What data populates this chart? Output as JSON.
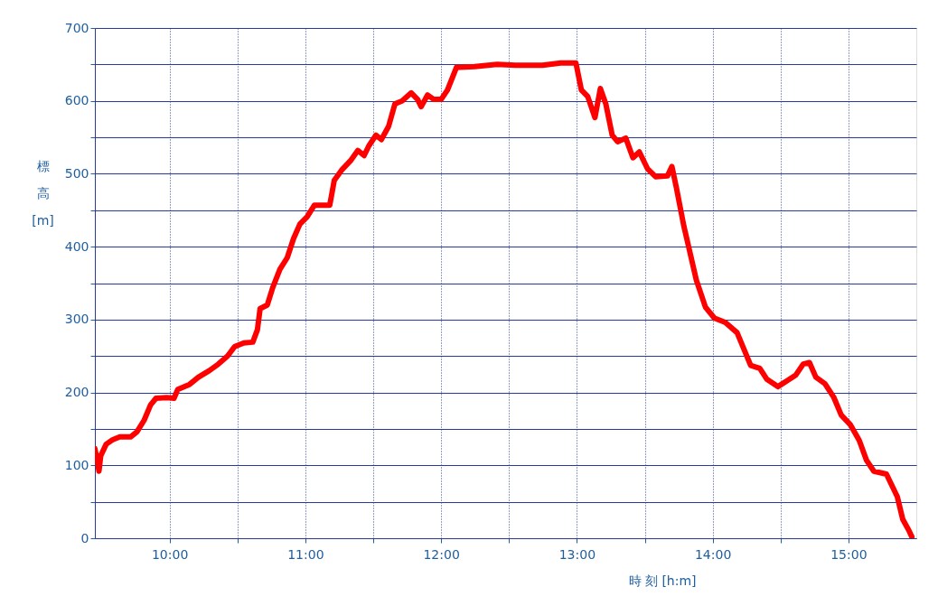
{
  "chart_data": {
    "type": "line",
    "xlabel": "時 刻 [h:m]",
    "ylabel": "標高 [m]",
    "x": [
      9.45,
      9.467,
      9.48,
      9.493,
      9.533,
      9.58,
      9.633,
      9.713,
      9.76,
      9.813,
      9.86,
      9.9,
      9.98,
      10.033,
      10.06,
      10.147,
      10.213,
      10.293,
      10.36,
      10.427,
      10.48,
      10.547,
      10.613,
      10.647,
      10.667,
      10.72,
      10.76,
      10.813,
      10.867,
      10.913,
      10.96,
      11.013,
      11.067,
      11.18,
      11.213,
      11.267,
      11.333,
      11.387,
      11.433,
      11.467,
      11.52,
      11.56,
      11.613,
      11.66,
      11.713,
      11.78,
      11.827,
      11.853,
      11.9,
      11.947,
      12.0,
      12.047,
      12.113,
      12.247,
      12.413,
      12.547,
      12.747,
      12.88,
      12.993,
      13.033,
      13.08,
      13.133,
      13.173,
      13.213,
      13.26,
      13.3,
      13.36,
      13.413,
      13.46,
      13.52,
      13.58,
      13.667,
      13.7,
      13.733,
      13.787,
      13.833,
      13.88,
      13.947,
      14.013,
      14.093,
      14.18,
      14.227,
      14.28,
      14.347,
      14.4,
      14.48,
      14.547,
      14.613,
      14.667,
      14.713,
      14.76,
      14.827,
      14.893,
      14.947,
      15.013,
      15.08,
      15.133,
      15.187,
      15.28,
      15.36,
      15.4,
      15.447,
      15.467
    ],
    "series": [
      {
        "color": "#ff0000",
        "values": [
          123,
          107,
          92,
          113,
          129,
          135,
          139,
          139,
          146,
          162,
          183,
          192,
          193,
          192,
          204,
          211,
          221,
          230,
          239,
          250,
          263,
          268,
          269,
          286,
          315,
          320,
          344,
          369,
          385,
          411,
          431,
          441,
          457,
          457,
          491,
          505,
          518,
          532,
          525,
          538,
          553,
          547,
          565,
          596,
          600,
          611,
          602,
          592,
          608,
          602,
          602,
          615,
          646,
          647,
          650,
          649,
          649,
          652,
          652,
          615,
          606,
          577,
          617,
          596,
          553,
          544,
          549,
          522,
          530,
          507,
          496,
          497,
          510,
          481,
          429,
          392,
          354,
          317,
          302,
          296,
          282,
          261,
          237,
          233,
          218,
          208,
          216,
          224,
          239,
          241,
          221,
          212,
          193,
          169,
          156,
          134,
          107,
          92,
          88,
          57,
          26,
          10,
          2
        ]
      }
    ],
    "xlim": [
      9.45,
      15.5
    ],
    "xticks": [
      {
        "value": 10,
        "label": "10:00"
      },
      {
        "value": 10.5,
        "label": null
      },
      {
        "value": 11,
        "label": "11:00"
      },
      {
        "value": 11.5,
        "label": null
      },
      {
        "value": 12,
        "label": "12:00"
      },
      {
        "value": 12.5,
        "label": null
      },
      {
        "value": 13,
        "label": "13:00"
      },
      {
        "value": 13.5,
        "label": null
      },
      {
        "value": 14,
        "label": "14:00"
      },
      {
        "value": 14.5,
        "label": null
      },
      {
        "value": 15,
        "label": "15:00"
      }
    ],
    "ylim": [
      0,
      700
    ],
    "yticks": [
      0,
      {
        "value": 50,
        "label": null
      },
      100,
      {
        "value": 150,
        "label": null
      },
      200,
      {
        "value": 250,
        "label": null
      },
      300,
      {
        "value": 350,
        "label": null
      },
      400,
      {
        "value": 450,
        "label": null
      },
      500,
      {
        "value": 550,
        "label": null
      },
      600,
      {
        "value": 650,
        "label": null
      },
      700
    ],
    "grid": true,
    "marker": "none",
    "line_style": "solid"
  }
}
